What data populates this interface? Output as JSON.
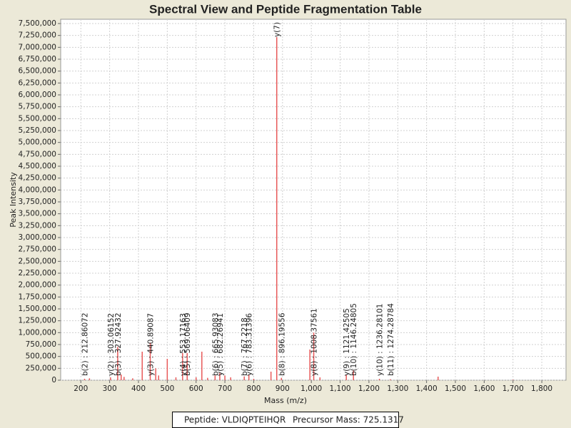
{
  "chart_data": {
    "type": "spectrum",
    "title": "Spectral View and Peptide Fragmentation Table",
    "x_label": "Mass (m/z)",
    "y_label": "Peak Intensity",
    "xlim": [
      130,
      1884
    ],
    "ylim": [
      0,
      7590000
    ],
    "xticks": [
      200,
      300,
      400,
      500,
      600,
      700,
      800,
      900,
      {
        "value": 1000,
        "label": "1,000"
      },
      {
        "value": 1100,
        "label": "1,100"
      },
      {
        "value": 1200,
        "label": "1,200"
      },
      {
        "value": 1300,
        "label": "1,300"
      },
      {
        "value": 1400,
        "label": "1,400"
      },
      {
        "value": 1500,
        "label": "1,500"
      },
      {
        "value": 1600,
        "label": "1,600"
      },
      {
        "value": 1700,
        "label": "1,700"
      },
      {
        "value": 1800,
        "label": "1,800"
      }
    ],
    "yticks": [
      0,
      {
        "value": 250000,
        "label": "250,000"
      },
      {
        "value": 500000,
        "label": "500,000"
      },
      {
        "value": 750000,
        "label": "750,000"
      },
      {
        "value": 1000000,
        "label": "1,000,000"
      },
      {
        "value": 1250000,
        "label": "1,250,000"
      },
      {
        "value": 1500000,
        "label": "1,500,000"
      },
      {
        "value": 1750000,
        "label": "1,750,000"
      },
      {
        "value": 2000000,
        "label": "2,000,000"
      },
      {
        "value": 2250000,
        "label": "2,250,000"
      },
      {
        "value": 2500000,
        "label": "2,500,000"
      },
      {
        "value": 2750000,
        "label": "2,750,000"
      },
      {
        "value": 3000000,
        "label": "3,000,000"
      },
      {
        "value": 3250000,
        "label": "3,250,000"
      },
      {
        "value": 3500000,
        "label": "3,500,000"
      },
      {
        "value": 3750000,
        "label": "3,750,000"
      },
      {
        "value": 4000000,
        "label": "4,000,000"
      },
      {
        "value": 4250000,
        "label": "4,250,000"
      },
      {
        "value": 4500000,
        "label": "4,500,000"
      },
      {
        "value": 4750000,
        "label": "4,750,000"
      },
      {
        "value": 5000000,
        "label": "5,000,000"
      },
      {
        "value": 5250000,
        "label": "5,250,000"
      },
      {
        "value": 5500000,
        "label": "5,500,000"
      },
      {
        "value": 5750000,
        "label": "5,750,000"
      },
      {
        "value": 6000000,
        "label": "6,000,000"
      },
      {
        "value": 6250000,
        "label": "6,250,000"
      },
      {
        "value": 6500000,
        "label": "6,500,000"
      },
      {
        "value": 6750000,
        "label": "6,750,000"
      },
      {
        "value": 7000000,
        "label": "7,000,000"
      },
      {
        "value": 7250000,
        "label": "7,250,000"
      },
      {
        "value": 7500000,
        "label": "7,500,000"
      }
    ],
    "grid": true,
    "color": "#e85a5a",
    "x": [
      212.9,
      230,
      303.1,
      327.9,
      340,
      350,
      380,
      413,
      440.9,
      460,
      470,
      500,
      530,
      553.2,
      569.1,
      600,
      620,
      640,
      665.9,
      682.3,
      700,
      720,
      767.2,
      783.3,
      800,
      860,
      880,
      896.2,
      995,
      1008.4,
      1030,
      1121.4,
      1146.2,
      1236.3,
      1274.3,
      1440,
      1700
    ],
    "values": [
      30000,
      40000,
      60000,
      700000,
      120000,
      70000,
      40000,
      600000,
      790000,
      250000,
      100000,
      450000,
      60000,
      570000,
      570000,
      60000,
      600000,
      50000,
      100000,
      150000,
      100000,
      60000,
      80000,
      120000,
      30000,
      180000,
      7215000,
      50000,
      645000,
      1000000,
      60000,
      120000,
      200000,
      30000,
      20000,
      75000,
      10000
    ],
    "annotations": [
      {
        "text": "b(2) : 212.86072",
        "x": 212.86072
      },
      {
        "text": "y(2) : 303.06152",
        "x": 303.06152
      },
      {
        "text": "b(3) : 327.92432",
        "x": 327.92432
      },
      {
        "text": "y(3) : 440.89087",
        "x": 440.89087
      },
      {
        "text": "y(4) : 553.17163",
        "x": 553.17163
      },
      {
        "text": "b(5) : 569.06409",
        "x": 569.06409
      },
      {
        "text": "b(6) : 665.93083",
        "x": 665.93083
      },
      {
        "text": "y(5) : 682.26941",
        "x": 682.26941
      },
      {
        "text": "b(7) : 767.2218",
        "x": 767.2218
      },
      {
        "text": "y(6) : 783.31396",
        "x": 783.31396
      },
      {
        "text": "y(7) :",
        "x": 880
      },
      {
        "text": "b(8) : 896.19556",
        "x": 896.19556
      },
      {
        "text": "y(8) : 1008.37561",
        "x": 1008.37561
      },
      {
        "text": "y(9) : 1121.42505",
        "x": 1121.42505
      },
      {
        "text": "b(10) : 1146.24805",
        "x": 1146.24805
      },
      {
        "text": "y(10) : 1236.28101",
        "x": 1236.28101
      },
      {
        "text": "b(11) : 1274.28784",
        "x": 1274.28784
      }
    ]
  },
  "legend_box": {
    "peptide": "Peptide: VLDIQPTEIHQR",
    "precursor": "Precursor Mass: 725.1317"
  }
}
